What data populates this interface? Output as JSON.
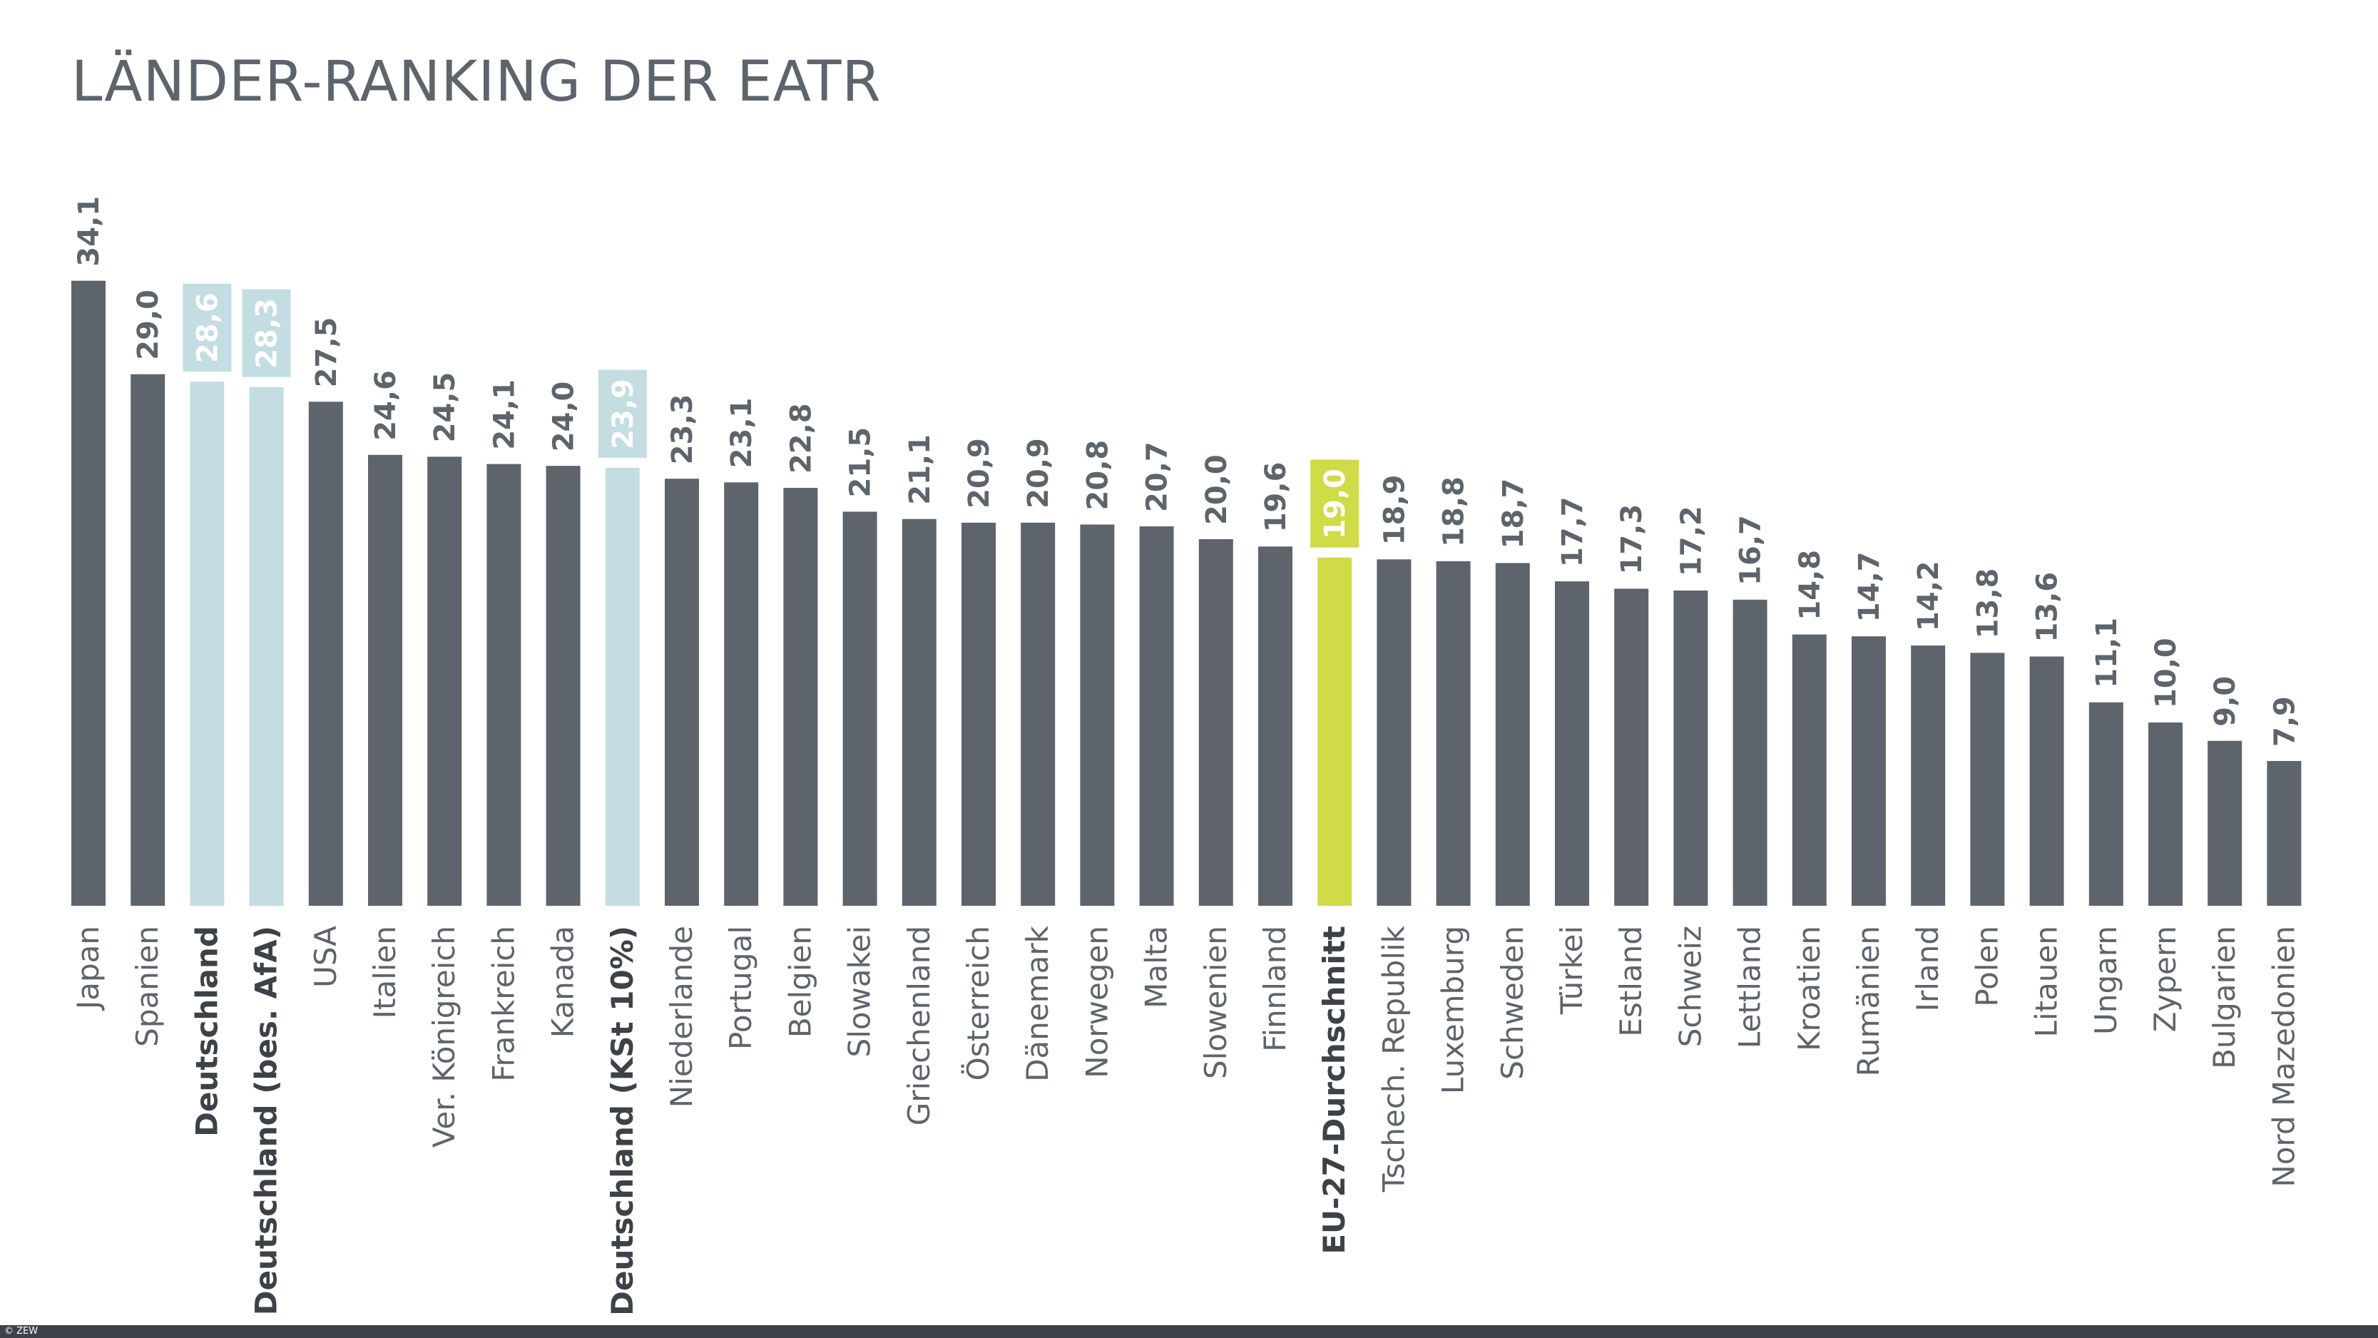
{
  "chart_data": {
    "type": "bar",
    "title": "LÄNDER-RANKING DER EATR",
    "xlabel": "",
    "ylabel": "",
    "ylim": [
      0,
      35
    ],
    "grid": false,
    "categories": [
      "Japan",
      "Spanien",
      "Deutschland",
      "Deutschland (bes. AfA)",
      "USA",
      "Italien",
      "Ver. Königreich",
      "Frankreich",
      "Kanada",
      "Deutschland (KSt 10%)",
      "Niederlande",
      "Portugal",
      "Belgien",
      "Slowakei",
      "Griechenland",
      "Österreich",
      "Dänemark",
      "Norwegen",
      "Malta",
      "Slowenien",
      "Finnland",
      "EU-27-Durchschnitt",
      "Tschech. Republik",
      "Luxemburg",
      "Schweden",
      "Türkei",
      "Estland",
      "Schweiz",
      "Lettland",
      "Kroatien",
      "Rumänien",
      "Irland",
      "Polen",
      "Litauen",
      "Ungarn",
      "Zypern",
      "Bulgarien",
      "Nord Mazedonien"
    ],
    "values": [
      34.1,
      29.0,
      28.6,
      28.3,
      27.5,
      24.6,
      24.5,
      24.1,
      24.0,
      23.9,
      23.3,
      23.1,
      22.8,
      21.5,
      21.1,
      20.9,
      20.9,
      20.8,
      20.7,
      20.0,
      19.6,
      19.0,
      18.9,
      18.8,
      18.7,
      17.7,
      17.3,
      17.2,
      16.7,
      14.8,
      14.7,
      14.2,
      13.8,
      13.6,
      11.1,
      10.0,
      9.0,
      7.9
    ],
    "value_labels": [
      "34,1",
      "29,0",
      "28,6",
      "28,3",
      "27,5",
      "24,6",
      "24,5",
      "24,1",
      "24,0",
      "23,9",
      "23,3",
      "23,1",
      "22,8",
      "21,5",
      "21,1",
      "20,9",
      "20,9",
      "20,8",
      "20,7",
      "20,0",
      "19,6",
      "19,0",
      "18,9",
      "18,8",
      "18,7",
      "17,7",
      "17,3",
      "17,2",
      "16,7",
      "14,8",
      "14,7",
      "14,2",
      "13,8",
      "13,6",
      "11,1",
      "10,0",
      "9,0",
      "7,9"
    ],
    "styles": [
      "default",
      "default",
      "germany",
      "germany",
      "default",
      "default",
      "default",
      "default",
      "default",
      "germany",
      "default",
      "default",
      "default",
      "default",
      "default",
      "default",
      "default",
      "default",
      "default",
      "default",
      "default",
      "eu",
      "default",
      "default",
      "default",
      "default",
      "default",
      "default",
      "default",
      "default",
      "default",
      "default",
      "default",
      "default",
      "default",
      "default",
      "default",
      "default"
    ]
  },
  "colors": {
    "default": "#5e646c",
    "germany": "#c3dde2",
    "eu": "#cfdb47",
    "text": "#5e646c",
    "highlight_label_text": "#ffffff"
  },
  "footer": {
    "copyright": "© ZEW"
  }
}
